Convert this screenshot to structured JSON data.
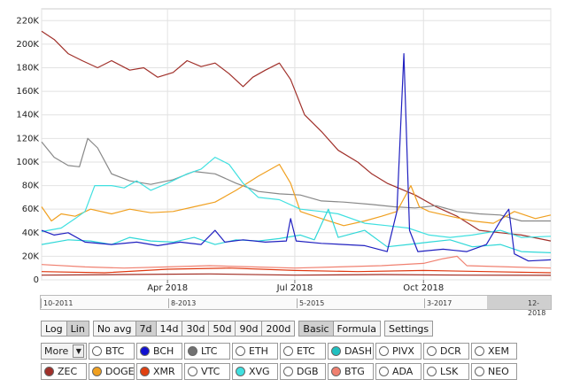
{
  "chart_data": {
    "type": "line",
    "title": "",
    "ylim": [
      0,
      230000
    ],
    "y_ticks": [
      "0",
      "20K",
      "40K",
      "60K",
      "80K",
      "100K",
      "120K",
      "140K",
      "160K",
      "180K",
      "200K",
      "220K"
    ],
    "x_ticks": [
      "Apr 2018",
      "Jul 2018",
      "Oct 2018"
    ],
    "x_range": [
      "2018-01-01",
      "2018-12-31"
    ],
    "grid": true,
    "series": [
      {
        "color": "#a0302a",
        "points": [
          [
            "2018-01-01",
            211000
          ],
          [
            "2018-01-10",
            204000
          ],
          [
            "2018-01-20",
            192000
          ],
          [
            "2018-01-30",
            186000
          ],
          [
            "2018-02-10",
            180000
          ],
          [
            "2018-02-20",
            186000
          ],
          [
            "2018-03-05",
            178000
          ],
          [
            "2018-03-15",
            180000
          ],
          [
            "2018-03-25",
            172000
          ],
          [
            "2018-04-05",
            176000
          ],
          [
            "2018-04-15",
            186000
          ],
          [
            "2018-04-25",
            181000
          ],
          [
            "2018-05-05",
            184000
          ],
          [
            "2018-05-15",
            175000
          ],
          [
            "2018-05-25",
            164000
          ],
          [
            "2018-06-01",
            172000
          ],
          [
            "2018-06-10",
            178000
          ],
          [
            "2018-06-20",
            184000
          ],
          [
            "2018-06-28",
            170000
          ],
          [
            "2018-07-08",
            140000
          ],
          [
            "2018-07-20",
            126000
          ],
          [
            "2018-08-01",
            110000
          ],
          [
            "2018-08-15",
            100000
          ],
          [
            "2018-08-25",
            90000
          ],
          [
            "2018-09-05",
            82000
          ],
          [
            "2018-09-15",
            77000
          ],
          [
            "2018-09-25",
            72000
          ],
          [
            "2018-10-10",
            62000
          ],
          [
            "2018-10-25",
            54000
          ],
          [
            "2018-11-10",
            42000
          ],
          [
            "2018-11-25",
            40000
          ],
          [
            "2018-12-10",
            38000
          ],
          [
            "2018-12-31",
            33000
          ]
        ]
      },
      {
        "color": "#888888",
        "points": [
          [
            "2018-01-01",
            117000
          ],
          [
            "2018-01-10",
            104000
          ],
          [
            "2018-01-20",
            97000
          ],
          [
            "2018-01-28",
            96000
          ],
          [
            "2018-02-03",
            120000
          ],
          [
            "2018-02-10",
            112000
          ],
          [
            "2018-02-20",
            90000
          ],
          [
            "2018-03-05",
            84000
          ],
          [
            "2018-03-20",
            81000
          ],
          [
            "2018-04-05",
            85000
          ],
          [
            "2018-04-20",
            92000
          ],
          [
            "2018-05-05",
            90000
          ],
          [
            "2018-05-20",
            82000
          ],
          [
            "2018-06-05",
            75000
          ],
          [
            "2018-06-20",
            73000
          ],
          [
            "2018-07-05",
            72000
          ],
          [
            "2018-07-20",
            67000
          ],
          [
            "2018-08-05",
            66000
          ],
          [
            "2018-08-25",
            64000
          ],
          [
            "2018-09-10",
            62000
          ],
          [
            "2018-09-25",
            61000
          ],
          [
            "2018-10-10",
            63000
          ],
          [
            "2018-10-25",
            58000
          ],
          [
            "2018-11-10",
            56000
          ],
          [
            "2018-11-25",
            55000
          ],
          [
            "2018-12-10",
            50000
          ],
          [
            "2018-12-31",
            50000
          ]
        ]
      },
      {
        "color": "#f0a020",
        "points": [
          [
            "2018-01-01",
            62000
          ],
          [
            "2018-01-08",
            50000
          ],
          [
            "2018-01-15",
            56000
          ],
          [
            "2018-01-25",
            54000
          ],
          [
            "2018-02-05",
            60000
          ],
          [
            "2018-02-20",
            56000
          ],
          [
            "2018-03-05",
            60000
          ],
          [
            "2018-03-20",
            57000
          ],
          [
            "2018-04-05",
            58000
          ],
          [
            "2018-04-20",
            62000
          ],
          [
            "2018-05-05",
            66000
          ],
          [
            "2018-05-20",
            76000
          ],
          [
            "2018-06-05",
            88000
          ],
          [
            "2018-06-20",
            98000
          ],
          [
            "2018-06-28",
            82000
          ],
          [
            "2018-07-05",
            58000
          ],
          [
            "2018-07-20",
            52000
          ],
          [
            "2018-08-05",
            46000
          ],
          [
            "2018-08-20",
            50000
          ],
          [
            "2018-09-01",
            54000
          ],
          [
            "2018-09-12",
            58000
          ],
          [
            "2018-09-22",
            80000
          ],
          [
            "2018-09-28",
            62000
          ],
          [
            "2018-10-05",
            58000
          ],
          [
            "2018-10-20",
            54000
          ],
          [
            "2018-11-05",
            50000
          ],
          [
            "2018-11-20",
            48000
          ],
          [
            "2018-12-05",
            58000
          ],
          [
            "2018-12-20",
            52000
          ],
          [
            "2018-12-31",
            55000
          ]
        ]
      },
      {
        "color": "#40e0e0",
        "points": [
          [
            "2018-01-01",
            41000
          ],
          [
            "2018-01-15",
            44000
          ],
          [
            "2018-01-25",
            52000
          ],
          [
            "2018-02-01",
            58000
          ],
          [
            "2018-02-08",
            80000
          ],
          [
            "2018-02-20",
            80000
          ],
          [
            "2018-03-01",
            78000
          ],
          [
            "2018-03-10",
            84000
          ],
          [
            "2018-03-20",
            76000
          ],
          [
            "2018-04-01",
            82000
          ],
          [
            "2018-04-15",
            90000
          ],
          [
            "2018-04-25",
            94000
          ],
          [
            "2018-05-05",
            104000
          ],
          [
            "2018-05-15",
            98000
          ],
          [
            "2018-05-25",
            82000
          ],
          [
            "2018-06-05",
            70000
          ],
          [
            "2018-06-20",
            68000
          ],
          [
            "2018-07-05",
            60000
          ],
          [
            "2018-07-20",
            58000
          ],
          [
            "2018-08-01",
            56000
          ],
          [
            "2018-08-20",
            48000
          ],
          [
            "2018-09-05",
            46000
          ],
          [
            "2018-09-20",
            44000
          ],
          [
            "2018-10-05",
            38000
          ],
          [
            "2018-10-20",
            36000
          ],
          [
            "2018-11-05",
            38000
          ],
          [
            "2018-11-25",
            42000
          ],
          [
            "2018-12-10",
            36000
          ],
          [
            "2018-12-31",
            37000
          ]
        ]
      },
      {
        "color": "#30d8d8",
        "points": [
          [
            "2018-01-01",
            30000
          ],
          [
            "2018-01-20",
            34000
          ],
          [
            "2018-02-05",
            33000
          ],
          [
            "2018-02-20",
            30000
          ],
          [
            "2018-03-05",
            36000
          ],
          [
            "2018-03-20",
            33000
          ],
          [
            "2018-04-05",
            32000
          ],
          [
            "2018-04-20",
            36000
          ],
          [
            "2018-05-05",
            30000
          ],
          [
            "2018-05-20",
            34000
          ],
          [
            "2018-06-05",
            33000
          ],
          [
            "2018-06-20",
            35000
          ],
          [
            "2018-07-05",
            38000
          ],
          [
            "2018-07-15",
            34000
          ],
          [
            "2018-07-25",
            60000
          ],
          [
            "2018-08-01",
            36000
          ],
          [
            "2018-08-20",
            42000
          ],
          [
            "2018-09-05",
            28000
          ],
          [
            "2018-09-20",
            30000
          ],
          [
            "2018-10-05",
            32000
          ],
          [
            "2018-10-20",
            34000
          ],
          [
            "2018-11-05",
            28000
          ],
          [
            "2018-11-25",
            30000
          ],
          [
            "2018-12-10",
            24000
          ],
          [
            "2018-12-31",
            23000
          ]
        ]
      },
      {
        "color": "#2020c0",
        "points": [
          [
            "2018-01-01",
            42000
          ],
          [
            "2018-01-10",
            38000
          ],
          [
            "2018-01-20",
            40000
          ],
          [
            "2018-02-01",
            32000
          ],
          [
            "2018-02-20",
            30000
          ],
          [
            "2018-03-10",
            32000
          ],
          [
            "2018-03-25",
            29000
          ],
          [
            "2018-04-10",
            32000
          ],
          [
            "2018-04-25",
            30000
          ],
          [
            "2018-05-05",
            42000
          ],
          [
            "2018-05-12",
            32000
          ],
          [
            "2018-05-25",
            34000
          ],
          [
            "2018-06-10",
            32000
          ],
          [
            "2018-06-25",
            33000
          ],
          [
            "2018-06-28",
            52000
          ],
          [
            "2018-07-02",
            33000
          ],
          [
            "2018-07-20",
            31000
          ],
          [
            "2018-08-05",
            30000
          ],
          [
            "2018-08-20",
            29000
          ],
          [
            "2018-09-05",
            24000
          ],
          [
            "2018-09-12",
            58000
          ],
          [
            "2018-09-17",
            192000
          ],
          [
            "2018-09-21",
            42000
          ],
          [
            "2018-09-27",
            24000
          ],
          [
            "2018-10-15",
            26000
          ],
          [
            "2018-11-01",
            24000
          ],
          [
            "2018-11-15",
            30000
          ],
          [
            "2018-11-25",
            50000
          ],
          [
            "2018-12-01",
            60000
          ],
          [
            "2018-12-05",
            22000
          ],
          [
            "2018-12-15",
            16000
          ],
          [
            "2018-12-31",
            17000
          ]
        ]
      },
      {
        "color": "#f08070",
        "points": [
          [
            "2018-01-01",
            13000
          ],
          [
            "2018-02-01",
            11000
          ],
          [
            "2018-03-01",
            10000
          ],
          [
            "2018-04-01",
            11000
          ],
          [
            "2018-05-01",
            12000
          ],
          [
            "2018-06-01",
            11000
          ],
          [
            "2018-07-01",
            10000
          ],
          [
            "2018-08-01",
            11000
          ],
          [
            "2018-09-01",
            12000
          ],
          [
            "2018-10-01",
            14000
          ],
          [
            "2018-10-15",
            18000
          ],
          [
            "2018-10-25",
            20000
          ],
          [
            "2018-11-01",
            12000
          ],
          [
            "2018-12-01",
            11000
          ],
          [
            "2018-12-31",
            10000
          ]
        ]
      },
      {
        "color": "#e03810",
        "points": [
          [
            "2018-01-01",
            7000
          ],
          [
            "2018-02-15",
            6000
          ],
          [
            "2018-04-01",
            9000
          ],
          [
            "2018-05-15",
            10000
          ],
          [
            "2018-07-01",
            8000
          ],
          [
            "2018-08-15",
            7000
          ],
          [
            "2018-10-01",
            8000
          ],
          [
            "2018-11-15",
            7000
          ],
          [
            "2018-12-31",
            6000
          ]
        ]
      },
      {
        "color": "#a02a20",
        "points": [
          [
            "2018-01-01",
            4000
          ],
          [
            "2018-03-01",
            4500
          ],
          [
            "2018-05-01",
            5000
          ],
          [
            "2018-07-01",
            4000
          ],
          [
            "2018-09-01",
            4500
          ],
          [
            "2018-11-01",
            4000
          ],
          [
            "2018-12-31",
            3800
          ]
        ]
      }
    ]
  },
  "navigator": {
    "labels": [
      "10-2011",
      "8-2013",
      "5-2015",
      "3-2017",
      "12-2018"
    ]
  },
  "controls": {
    "scale": [
      "Log",
      "Lin"
    ],
    "avg": [
      "No avg",
      "7d",
      "14d",
      "30d",
      "50d",
      "90d",
      "200d"
    ],
    "mode": [
      "Basic",
      "Formula"
    ],
    "settings": "Settings"
  },
  "coins_row1": {
    "more": "More",
    "items": [
      {
        "label": "BTC",
        "color": "#ffffff"
      },
      {
        "label": "BCH",
        "color": "#1010d0"
      },
      {
        "label": "LTC",
        "color": "#707070"
      },
      {
        "label": "ETH",
        "color": "#ffffff"
      },
      {
        "label": "ETC",
        "color": "#ffffff"
      },
      {
        "label": "DASH",
        "color": "#20c0c0"
      },
      {
        "label": "PIVX",
        "color": "#ffffff"
      },
      {
        "label": "DCR",
        "color": "#ffffff"
      },
      {
        "label": "XEM",
        "color": "#ffffff"
      }
    ]
  },
  "coins_row2": {
    "items": [
      {
        "label": "ZEC",
        "color": "#a0302a"
      },
      {
        "label": "DOGE",
        "color": "#f0a020"
      },
      {
        "label": "XMR",
        "color": "#e04010"
      },
      {
        "label": "VTC",
        "color": "#ffffff"
      },
      {
        "label": "XVG",
        "color": "#40e0e0"
      },
      {
        "label": "DGB",
        "color": "#ffffff"
      },
      {
        "label": "BTG",
        "color": "#f08070"
      },
      {
        "label": "ADA",
        "color": "#ffffff"
      },
      {
        "label": "LSK",
        "color": "#ffffff"
      },
      {
        "label": "NEO",
        "color": "#ffffff"
      }
    ]
  }
}
